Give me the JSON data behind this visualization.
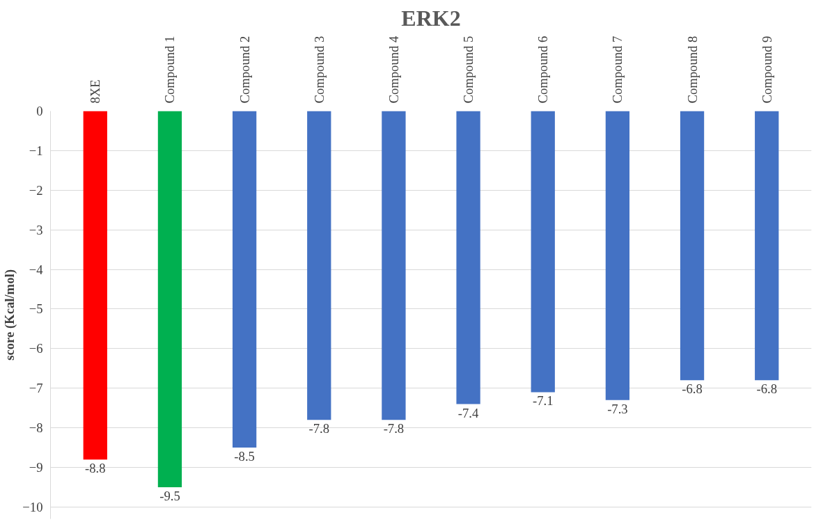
{
  "chart_data": {
    "type": "bar",
    "title": "ERK2",
    "ylabel": "score (Kcal/mol)",
    "categories": [
      "8XE",
      "Compound 1",
      "Compound 2",
      "Compound 3",
      "Compound 4",
      "Compound 5",
      "Compound 6",
      "Compound 7",
      "Compound 8",
      "Compound 9"
    ],
    "values": [
      -8.8,
      -9.5,
      -8.5,
      -7.8,
      -7.8,
      -7.4,
      -7.1,
      -7.3,
      -6.8,
      -6.8
    ],
    "colors": [
      "#ff0000",
      "#00b050",
      "#4472c4",
      "#4472c4",
      "#4472c4",
      "#4472c4",
      "#4472c4",
      "#4472c4",
      "#4472c4",
      "#4472c4"
    ],
    "ylim": [
      -10.3,
      0
    ],
    "yticks": [
      0,
      -1,
      -2,
      -3,
      -4,
      -5,
      -6,
      -7,
      -8,
      -9,
      -10
    ],
    "grid": "y",
    "data_labels": true
  }
}
